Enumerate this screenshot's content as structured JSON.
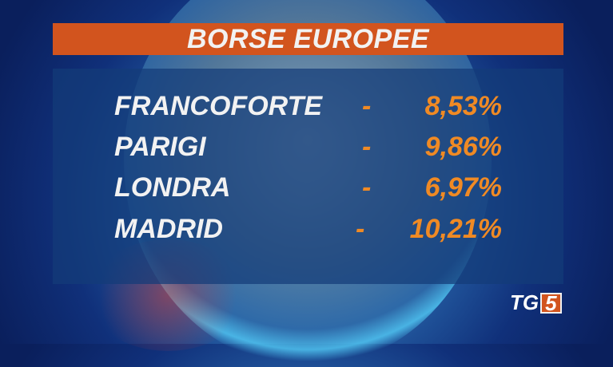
{
  "title": "BORSE EUROPEE",
  "rows": [
    {
      "name": "FRANCOFORTE",
      "sign": "-",
      "value": "8,53%"
    },
    {
      "name": "PARIGI",
      "sign": "-",
      "value": "9,86%"
    },
    {
      "name": "LONDRA",
      "sign": "-",
      "value": "6,97%"
    },
    {
      "name": "MADRID",
      "sign": "-",
      "value": "10,21%"
    }
  ],
  "logo": {
    "tg": "TG",
    "five": "5"
  },
  "colors": {
    "accent": "#d2541e",
    "value": "#f08a24",
    "panel": "#143c78"
  }
}
